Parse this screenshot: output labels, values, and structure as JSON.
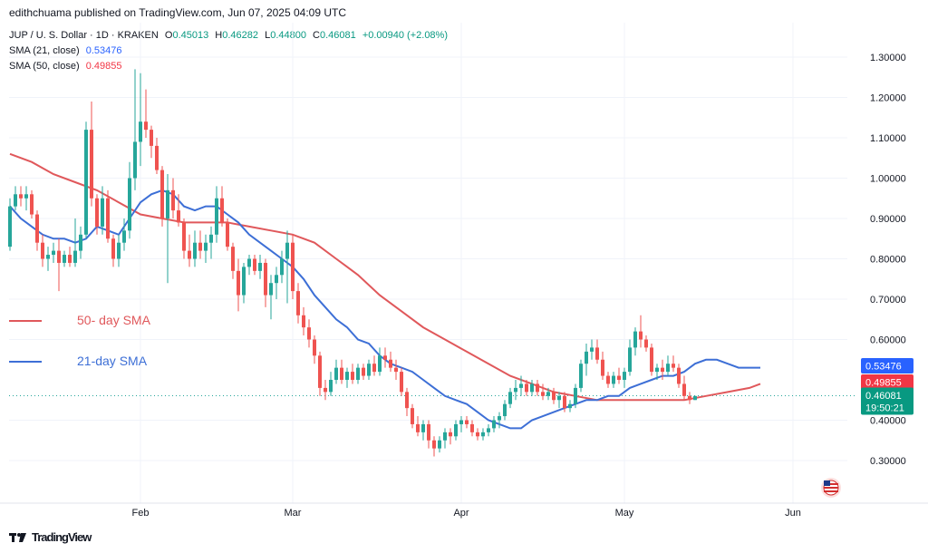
{
  "header": {
    "text": "edithchuama published on TradingView.com, Jun 07, 2025 04:09 UTC"
  },
  "legend": {
    "symbol": "JUP / U. S. Dollar · 1D · KRAKEN",
    "o_label": "O",
    "o": "0.45013",
    "h_label": "H",
    "h": "0.46282",
    "l_label": "L",
    "l": "0.44800",
    "c_label": "C",
    "c": "0.46081",
    "change": "+0.00940 (+2.08%)",
    "sma21_label": "SMA (21, close)",
    "sma21_value": "0.53476",
    "sma50_label": "SMA (50, close)",
    "sma50_value": "0.49855"
  },
  "footer": {
    "brand": "TradingView"
  },
  "colors": {
    "up": "#26a69a",
    "down": "#ef5350",
    "sma21": "#3d6fd6",
    "sma50": "#e0585b",
    "grid": "#f0f3fa",
    "axis_text": "#131722"
  },
  "chart_data": {
    "type": "candlestick",
    "ylim": [
      0.22,
      1.36
    ],
    "y_ticks": [
      "1.30000",
      "1.20000",
      "1.10000",
      "1.00000",
      "0.90000",
      "0.80000",
      "0.70000",
      "0.60000",
      "0.40000",
      "0.30000"
    ],
    "x_labels": [
      {
        "label": "Feb",
        "index": 24
      },
      {
        "label": "Mar",
        "index": 52
      },
      {
        "label": "Apr",
        "index": 83
      },
      {
        "label": "May",
        "index": 113
      },
      {
        "label": "Jun",
        "index": 144
      }
    ],
    "annotations": [
      {
        "text": "50- day SMA",
        "series": "sma50"
      },
      {
        "text": "21-day SMA",
        "series": "sma21"
      }
    ],
    "price_labels": [
      {
        "value": 0.53476,
        "text": "0.53476",
        "color": "#2962ff"
      },
      {
        "value": 0.49855,
        "text": "0.49855",
        "color": "#f23645"
      },
      {
        "value": 0.46081,
        "text": "0.46081",
        "sub": "19:50:21",
        "color": "#089981"
      }
    ],
    "last_price": 0.46081,
    "candles": [
      [
        0.83,
        0.95,
        0.82,
        0.93
      ],
      [
        0.93,
        0.98,
        0.92,
        0.96
      ],
      [
        0.96,
        0.98,
        0.93,
        0.95
      ],
      [
        0.95,
        0.98,
        0.92,
        0.96
      ],
      [
        0.96,
        0.97,
        0.9,
        0.91
      ],
      [
        0.91,
        0.92,
        0.82,
        0.84
      ],
      [
        0.84,
        0.86,
        0.78,
        0.8
      ],
      [
        0.8,
        0.83,
        0.77,
        0.81
      ],
      [
        0.81,
        0.84,
        0.79,
        0.82
      ],
      [
        0.82,
        0.85,
        0.72,
        0.79
      ],
      [
        0.79,
        0.82,
        0.78,
        0.81
      ],
      [
        0.81,
        0.83,
        0.78,
        0.79
      ],
      [
        0.79,
        0.9,
        0.78,
        0.82
      ],
      [
        0.82,
        0.88,
        0.8,
        0.86
      ],
      [
        0.86,
        1.14,
        0.85,
        1.12
      ],
      [
        1.12,
        1.19,
        0.93,
        0.95
      ],
      [
        0.95,
        0.96,
        0.86,
        0.88
      ],
      [
        0.88,
        0.98,
        0.86,
        0.95
      ],
      [
        0.95,
        0.97,
        0.84,
        0.85
      ],
      [
        0.85,
        0.86,
        0.78,
        0.8
      ],
      [
        0.8,
        0.86,
        0.78,
        0.84
      ],
      [
        0.84,
        0.9,
        0.82,
        0.87
      ],
      [
        0.87,
        1.04,
        0.85,
        1.0
      ],
      [
        1.0,
        1.27,
        0.97,
        1.09
      ],
      [
        1.09,
        1.26,
        1.03,
        1.14
      ],
      [
        1.14,
        1.22,
        1.1,
        1.12
      ],
      [
        1.12,
        1.13,
        1.05,
        1.08
      ],
      [
        1.08,
        1.1,
        1.01,
        1.02
      ],
      [
        1.02,
        1.03,
        0.88,
        0.9
      ],
      [
        0.9,
        1.01,
        0.74,
        0.97
      ],
      [
        0.97,
        1.0,
        0.9,
        0.92
      ],
      [
        0.92,
        0.96,
        0.88,
        0.89
      ],
      [
        0.89,
        0.9,
        0.8,
        0.82
      ],
      [
        0.82,
        0.86,
        0.78,
        0.8
      ],
      [
        0.8,
        0.87,
        0.78,
        0.84
      ],
      [
        0.84,
        0.87,
        0.8,
        0.82
      ],
      [
        0.82,
        0.86,
        0.79,
        0.84
      ],
      [
        0.84,
        0.88,
        0.8,
        0.86
      ],
      [
        0.86,
        0.98,
        0.84,
        0.95
      ],
      [
        0.95,
        0.98,
        0.88,
        0.89
      ],
      [
        0.89,
        0.9,
        0.82,
        0.83
      ],
      [
        0.83,
        0.84,
        0.75,
        0.77
      ],
      [
        0.77,
        0.8,
        0.67,
        0.71
      ],
      [
        0.71,
        0.79,
        0.69,
        0.78
      ],
      [
        0.78,
        0.81,
        0.76,
        0.8
      ],
      [
        0.8,
        0.81,
        0.76,
        0.77
      ],
      [
        0.77,
        0.81,
        0.75,
        0.79
      ],
      [
        0.79,
        0.8,
        0.68,
        0.71
      ],
      [
        0.71,
        0.76,
        0.65,
        0.74
      ],
      [
        0.74,
        0.78,
        0.7,
        0.76
      ],
      [
        0.76,
        0.82,
        0.74,
        0.8
      ],
      [
        0.8,
        0.87,
        0.69,
        0.84
      ],
      [
        0.84,
        0.86,
        0.7,
        0.72
      ],
      [
        0.72,
        0.74,
        0.64,
        0.66
      ],
      [
        0.66,
        0.68,
        0.61,
        0.63
      ],
      [
        0.63,
        0.65,
        0.58,
        0.6
      ],
      [
        0.6,
        0.61,
        0.54,
        0.56
      ],
      [
        0.56,
        0.57,
        0.46,
        0.48
      ],
      [
        0.48,
        0.5,
        0.45,
        0.47
      ],
      [
        0.47,
        0.52,
        0.46,
        0.5
      ],
      [
        0.5,
        0.55,
        0.49,
        0.53
      ],
      [
        0.53,
        0.55,
        0.49,
        0.5
      ],
      [
        0.5,
        0.53,
        0.48,
        0.52
      ],
      [
        0.52,
        0.54,
        0.49,
        0.5
      ],
      [
        0.5,
        0.54,
        0.49,
        0.53
      ],
      [
        0.53,
        0.54,
        0.5,
        0.51
      ],
      [
        0.51,
        0.55,
        0.5,
        0.54
      ],
      [
        0.54,
        0.56,
        0.51,
        0.52
      ],
      [
        0.52,
        0.58,
        0.51,
        0.56
      ],
      [
        0.56,
        0.58,
        0.53,
        0.55
      ],
      [
        0.55,
        0.57,
        0.52,
        0.53
      ],
      [
        0.53,
        0.55,
        0.5,
        0.52
      ],
      [
        0.52,
        0.53,
        0.46,
        0.47
      ],
      [
        0.47,
        0.48,
        0.41,
        0.43
      ],
      [
        0.43,
        0.44,
        0.38,
        0.39
      ],
      [
        0.39,
        0.41,
        0.36,
        0.37
      ],
      [
        0.37,
        0.4,
        0.35,
        0.39
      ],
      [
        0.39,
        0.4,
        0.33,
        0.35
      ],
      [
        0.35,
        0.36,
        0.31,
        0.33
      ],
      [
        0.33,
        0.36,
        0.32,
        0.35
      ],
      [
        0.35,
        0.38,
        0.33,
        0.37
      ],
      [
        0.37,
        0.38,
        0.34,
        0.36
      ],
      [
        0.36,
        0.4,
        0.35,
        0.39
      ],
      [
        0.39,
        0.41,
        0.37,
        0.4
      ],
      [
        0.4,
        0.41,
        0.38,
        0.39
      ],
      [
        0.39,
        0.4,
        0.36,
        0.37
      ],
      [
        0.37,
        0.38,
        0.35,
        0.36
      ],
      [
        0.36,
        0.38,
        0.35,
        0.37
      ],
      [
        0.37,
        0.39,
        0.36,
        0.38
      ],
      [
        0.38,
        0.41,
        0.37,
        0.4
      ],
      [
        0.4,
        0.42,
        0.38,
        0.41
      ],
      [
        0.41,
        0.45,
        0.4,
        0.44
      ],
      [
        0.44,
        0.48,
        0.43,
        0.47
      ],
      [
        0.47,
        0.5,
        0.45,
        0.48
      ],
      [
        0.48,
        0.51,
        0.46,
        0.49
      ],
      [
        0.49,
        0.5,
        0.46,
        0.47
      ],
      [
        0.47,
        0.5,
        0.46,
        0.49
      ],
      [
        0.49,
        0.5,
        0.46,
        0.47
      ],
      [
        0.47,
        0.49,
        0.45,
        0.46
      ],
      [
        0.46,
        0.48,
        0.45,
        0.47
      ],
      [
        0.47,
        0.48,
        0.44,
        0.45
      ],
      [
        0.45,
        0.47,
        0.43,
        0.46
      ],
      [
        0.46,
        0.47,
        0.42,
        0.43
      ],
      [
        0.43,
        0.45,
        0.42,
        0.44
      ],
      [
        0.44,
        0.49,
        0.43,
        0.48
      ],
      [
        0.48,
        0.55,
        0.47,
        0.54
      ],
      [
        0.54,
        0.59,
        0.51,
        0.57
      ],
      [
        0.57,
        0.6,
        0.55,
        0.58
      ],
      [
        0.58,
        0.6,
        0.54,
        0.55
      ],
      [
        0.55,
        0.57,
        0.5,
        0.51
      ],
      [
        0.51,
        0.52,
        0.48,
        0.49
      ],
      [
        0.49,
        0.52,
        0.48,
        0.51
      ],
      [
        0.51,
        0.53,
        0.49,
        0.5
      ],
      [
        0.5,
        0.53,
        0.48,
        0.52
      ],
      [
        0.52,
        0.6,
        0.51,
        0.58
      ],
      [
        0.58,
        0.63,
        0.56,
        0.62
      ],
      [
        0.62,
        0.66,
        0.58,
        0.6
      ],
      [
        0.6,
        0.61,
        0.57,
        0.58
      ],
      [
        0.58,
        0.59,
        0.51,
        0.52
      ],
      [
        0.52,
        0.54,
        0.5,
        0.53
      ],
      [
        0.53,
        0.55,
        0.5,
        0.52
      ],
      [
        0.52,
        0.56,
        0.51,
        0.54
      ],
      [
        0.54,
        0.56,
        0.52,
        0.53
      ],
      [
        0.53,
        0.54,
        0.48,
        0.49
      ],
      [
        0.49,
        0.51,
        0.45,
        0.46
      ],
      [
        0.46,
        0.47,
        0.44,
        0.45
      ],
      [
        0.45,
        0.46,
        0.45,
        0.46
      ]
    ],
    "sma21": [
      [
        0,
        0.93
      ],
      [
        2,
        0.9
      ],
      [
        4,
        0.88
      ],
      [
        6,
        0.86
      ],
      [
        8,
        0.85
      ],
      [
        10,
        0.85
      ],
      [
        12,
        0.84
      ],
      [
        14,
        0.85
      ],
      [
        16,
        0.88
      ],
      [
        18,
        0.87
      ],
      [
        20,
        0.86
      ],
      [
        22,
        0.9
      ],
      [
        24,
        0.94
      ],
      [
        26,
        0.96
      ],
      [
        28,
        0.97
      ],
      [
        30,
        0.96
      ],
      [
        32,
        0.93
      ],
      [
        34,
        0.92
      ],
      [
        36,
        0.93
      ],
      [
        38,
        0.93
      ],
      [
        40,
        0.91
      ],
      [
        42,
        0.89
      ],
      [
        44,
        0.86
      ],
      [
        46,
        0.84
      ],
      [
        48,
        0.82
      ],
      [
        50,
        0.8
      ],
      [
        52,
        0.78
      ],
      [
        54,
        0.75
      ],
      [
        56,
        0.71
      ],
      [
        58,
        0.68
      ],
      [
        60,
        0.65
      ],
      [
        62,
        0.63
      ],
      [
        64,
        0.6
      ],
      [
        66,
        0.59
      ],
      [
        68,
        0.56
      ],
      [
        70,
        0.54
      ],
      [
        72,
        0.53
      ],
      [
        74,
        0.52
      ],
      [
        76,
        0.5
      ],
      [
        78,
        0.48
      ],
      [
        80,
        0.46
      ],
      [
        82,
        0.45
      ],
      [
        84,
        0.44
      ],
      [
        86,
        0.42
      ],
      [
        88,
        0.4
      ],
      [
        90,
        0.39
      ],
      [
        92,
        0.38
      ],
      [
        94,
        0.38
      ],
      [
        96,
        0.4
      ],
      [
        98,
        0.41
      ],
      [
        100,
        0.42
      ],
      [
        102,
        0.43
      ],
      [
        104,
        0.44
      ],
      [
        106,
        0.45
      ],
      [
        108,
        0.45
      ],
      [
        110,
        0.46
      ],
      [
        112,
        0.46
      ],
      [
        114,
        0.48
      ],
      [
        116,
        0.49
      ],
      [
        118,
        0.5
      ],
      [
        120,
        0.51
      ],
      [
        122,
        0.51
      ],
      [
        124,
        0.52
      ],
      [
        126,
        0.54
      ],
      [
        128,
        0.55
      ],
      [
        130,
        0.55
      ],
      [
        132,
        0.54
      ],
      [
        134,
        0.53
      ],
      [
        136,
        0.53
      ],
      [
        138,
        0.53
      ]
    ],
    "sma50": [
      [
        0,
        1.06
      ],
      [
        4,
        1.04
      ],
      [
        8,
        1.01
      ],
      [
        12,
        0.99
      ],
      [
        16,
        0.97
      ],
      [
        20,
        0.94
      ],
      [
        24,
        0.91
      ],
      [
        28,
        0.9
      ],
      [
        32,
        0.89
      ],
      [
        36,
        0.89
      ],
      [
        40,
        0.89
      ],
      [
        44,
        0.88
      ],
      [
        48,
        0.87
      ],
      [
        52,
        0.86
      ],
      [
        56,
        0.84
      ],
      [
        60,
        0.8
      ],
      [
        64,
        0.76
      ],
      [
        68,
        0.71
      ],
      [
        72,
        0.67
      ],
      [
        76,
        0.63
      ],
      [
        80,
        0.6
      ],
      [
        84,
        0.57
      ],
      [
        88,
        0.54
      ],
      [
        92,
        0.51
      ],
      [
        96,
        0.49
      ],
      [
        100,
        0.47
      ],
      [
        104,
        0.46
      ],
      [
        108,
        0.45
      ],
      [
        112,
        0.45
      ],
      [
        116,
        0.45
      ],
      [
        120,
        0.45
      ],
      [
        124,
        0.45
      ],
      [
        128,
        0.46
      ],
      [
        132,
        0.47
      ],
      [
        136,
        0.48
      ],
      [
        138,
        0.49
      ]
    ]
  }
}
